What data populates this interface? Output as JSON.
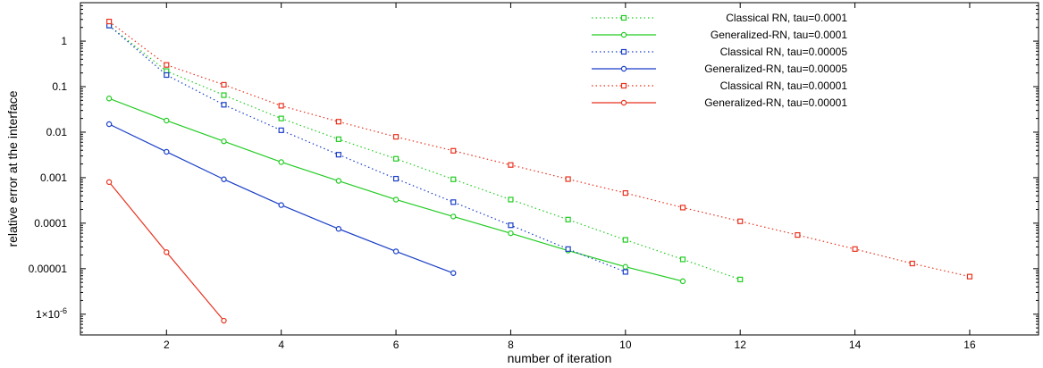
{
  "chart_data": {
    "type": "line",
    "title": "",
    "xlabel": "number of iteration",
    "ylabel": "relative error at the interface",
    "xscale": "linear",
    "yscale": "log",
    "xlim": [
      0.5,
      17.2
    ],
    "ylim": [
      3.5e-07,
      7
    ],
    "grid": false,
    "legend_position": "top-right",
    "xticks": [
      2,
      4,
      6,
      8,
      10,
      12,
      14,
      16
    ],
    "xtick_labels": [
      "2",
      "4",
      "6",
      "8",
      "10",
      "12",
      "14",
      "16"
    ],
    "yticks": [
      1e-06,
      1e-05,
      0.0001,
      0.001,
      0.01,
      0.1,
      1
    ],
    "ytick_labels": [
      {
        "base": "1×10",
        "exp": "-6"
      },
      {
        "base": "0.00001",
        "exp": ""
      },
      {
        "base": "0.0001",
        "exp": ""
      },
      {
        "base": "0.001",
        "exp": ""
      },
      {
        "base": "0.01",
        "exp": ""
      },
      {
        "base": "0.1",
        "exp": ""
      },
      {
        "base": "1",
        "exp": ""
      }
    ],
    "series": [
      {
        "name": "Classical RN, tau=0.0001",
        "color": "#22cc22",
        "line_style": "dotted",
        "marker": "square",
        "x": [
          1,
          2,
          3,
          4,
          5,
          6,
          7,
          8,
          9,
          10,
          11,
          12
        ],
        "y": [
          2.2,
          0.22,
          0.065,
          0.02,
          0.007,
          0.0026,
          0.00092,
          0.00033,
          0.00012,
          4.3e-05,
          1.6e-05,
          5.8e-06
        ]
      },
      {
        "name": "Generalized-RN, tau=0.0001",
        "color": "#22cc22",
        "line_style": "solid",
        "marker": "circle",
        "x": [
          1,
          2,
          3,
          4,
          5,
          6,
          7,
          8,
          9,
          10,
          11
        ],
        "y": [
          0.055,
          0.018,
          0.0063,
          0.0022,
          0.00085,
          0.00033,
          0.00014,
          6e-05,
          2.5e-05,
          1.1e-05,
          5.3e-06
        ]
      },
      {
        "name": "Classical RN, tau=0.00005",
        "color": "#1a3fc7",
        "line_style": "dotted",
        "marker": "square",
        "x": [
          1,
          2,
          3,
          4,
          5,
          6,
          7,
          8,
          9,
          10
        ],
        "y": [
          2.2,
          0.18,
          0.04,
          0.011,
          0.0032,
          0.00095,
          0.00029,
          9e-05,
          2.7e-05,
          8.5e-06
        ]
      },
      {
        "name": "Generalized-RN, tau=0.00005",
        "color": "#1a3fc7",
        "line_style": "solid",
        "marker": "circle",
        "x": [
          1,
          2,
          3,
          4,
          5,
          6,
          7
        ],
        "y": [
          0.015,
          0.0037,
          0.00092,
          0.00025,
          7.5e-05,
          2.4e-05,
          8e-06
        ]
      },
      {
        "name": "Classical RN, tau=0.00001",
        "color": "#e8321e",
        "line_style": "dotted",
        "marker": "square",
        "x": [
          1,
          2,
          3,
          4,
          5,
          6,
          7,
          8,
          9,
          10,
          11,
          12,
          13,
          14,
          15,
          16
        ],
        "y": [
          2.7,
          0.3,
          0.11,
          0.038,
          0.017,
          0.0079,
          0.0039,
          0.0019,
          0.00093,
          0.00046,
          0.00022,
          0.00011,
          5.5e-05,
          2.7e-05,
          1.3e-05,
          6.7e-06
        ]
      },
      {
        "name": "Generalized-RN, tau=0.00001",
        "color": "#e8321e",
        "line_style": "solid",
        "marker": "circle",
        "x": [
          1,
          2,
          3
        ],
        "y": [
          0.0008,
          2.3e-05,
          7.2e-07
        ]
      }
    ]
  }
}
